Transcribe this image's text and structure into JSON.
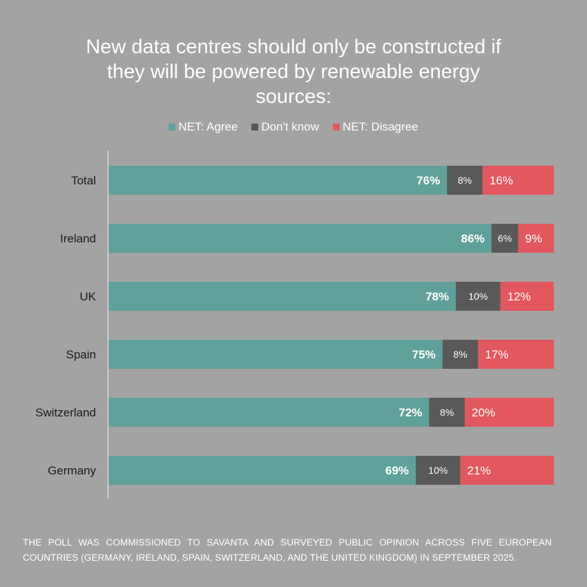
{
  "chart_data": {
    "type": "bar",
    "orientation": "horizontal",
    "stacked": true,
    "percent": true,
    "title": "New data centres should only be constructed if they will be powered by renewable energy sources:",
    "xlabel": "",
    "ylabel": "",
    "xlim": [
      0,
      100
    ],
    "grid": false,
    "legend_position": "top-center",
    "categories": [
      "Total",
      "Ireland",
      "UK",
      "Spain",
      "Switzerland",
      "Germany"
    ],
    "series": [
      {
        "name": "NET: Agree",
        "color": "#5fa19a",
        "label_color": "#ffffff",
        "label_bold": true,
        "values": [
          76,
          86,
          78,
          75,
          72,
          69
        ]
      },
      {
        "name": "Don't know",
        "color": "#595959",
        "label_color": "#ffffff",
        "label_bold": false,
        "values": [
          8,
          6,
          10,
          8,
          8,
          10
        ]
      },
      {
        "name": "NET: Disagree",
        "color": "#e2585e",
        "label_color": "#ffffff",
        "label_bold": false,
        "values": [
          16,
          9,
          12,
          17,
          20,
          21
        ]
      }
    ],
    "data_labels": [
      [
        "76%",
        "86%",
        "78%",
        "75%",
        "72%",
        "69%"
      ],
      [
        "8%",
        "6%",
        "10%",
        "8%",
        "8%",
        "10%"
      ],
      [
        "16%",
        "9%",
        "12%",
        "17%",
        "20%",
        "21%"
      ]
    ]
  },
  "title_lines": [
    "New data centres should only be constructed if",
    "they will be powered by renewable energy",
    "sources:"
  ],
  "legend": [
    {
      "label": "NET: Agree",
      "color": "#5fa19a"
    },
    {
      "label": "Don't know",
      "color": "#595959"
    },
    {
      "label": "NET: Disagree",
      "color": "#e2585e"
    }
  ],
  "footnote": "The poll was commissioned to Savanta and surveyed public opinion across five European countries (Germany, Ireland, Spain, Switzerland, and the United Kingdom) in September 2025.",
  "colors": {
    "background": "#a3a3a3",
    "axis": "#e6e6e6",
    "category_label": "#1a1a1a"
  }
}
